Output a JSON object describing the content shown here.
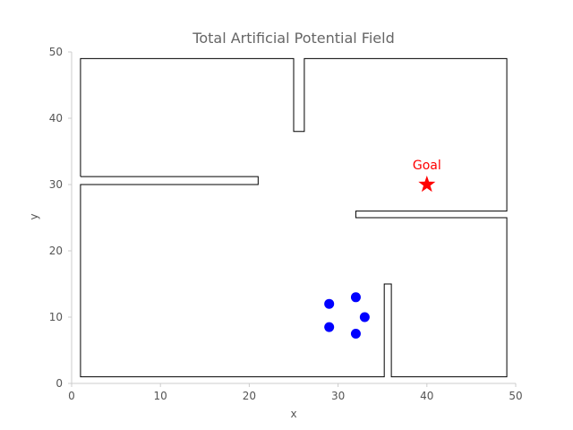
{
  "chart_data": {
    "type": "scatter",
    "title": "Total Artificial Potential Field",
    "xlabel": "x",
    "ylabel": "y",
    "xlim": [
      0,
      50
    ],
    "ylim": [
      0,
      50
    ],
    "x_ticks": [
      "0",
      "10",
      "20",
      "30",
      "40",
      "50"
    ],
    "y_ticks": [
      "0",
      "10",
      "20",
      "30",
      "40",
      "50"
    ],
    "grid": false,
    "walls": [
      {
        "x": [
          1,
          1,
          25,
          25,
          26.2,
          26.2,
          49,
          49,
          32,
          32,
          49,
          49,
          36,
          36,
          35.2,
          35.2,
          1,
          1,
          21,
          21,
          1
        ],
        "y": [
          31.2,
          49,
          49,
          38,
          38,
          49,
          49,
          26,
          26,
          25,
          25,
          1,
          1,
          15,
          15,
          1,
          1,
          30,
          30,
          31.2,
          31.2
        ]
      }
    ],
    "goal": {
      "x": 40,
      "y": 30,
      "label": "Goal",
      "color": "#ff0000"
    },
    "robots": {
      "color": "#0000ff",
      "points": [
        {
          "x": 29,
          "y": 12
        },
        {
          "x": 32,
          "y": 13
        },
        {
          "x": 33,
          "y": 10
        },
        {
          "x": 32,
          "y": 7.5
        },
        {
          "x": 29,
          "y": 8.5
        }
      ]
    }
  }
}
